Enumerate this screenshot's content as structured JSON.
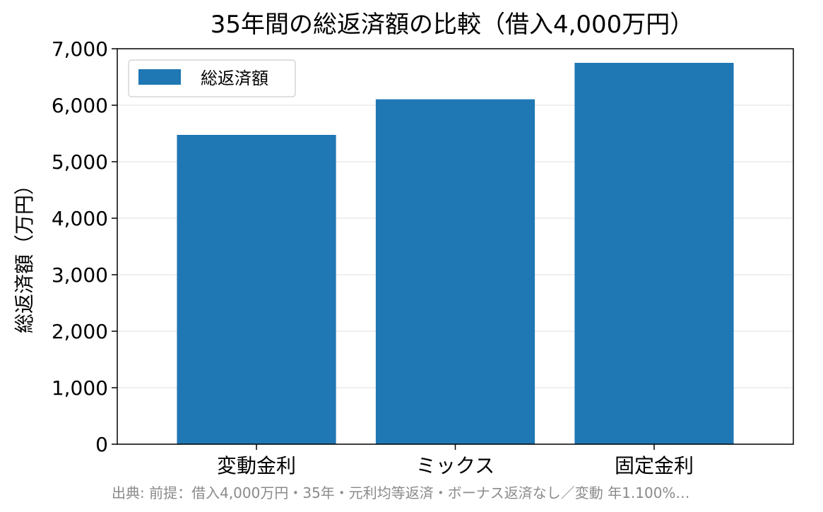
{
  "chart_data": {
    "type": "bar",
    "title": "35年間の総返済額の比較（借入4,000万円）",
    "xlabel": "",
    "ylabel": "総返済額（万円）",
    "categories": [
      "変動金利",
      "ミックス",
      "固定金利"
    ],
    "series": [
      {
        "name": "総返済額",
        "values": [
          5475,
          6105,
          6750
        ]
      }
    ],
    "ylim": [
      0,
      7000
    ],
    "yticks": [
      0,
      1000,
      2000,
      3000,
      4000,
      5000,
      6000,
      7000
    ],
    "ytick_labels": [
      "0",
      "1,000",
      "2,000",
      "3,000",
      "4,000",
      "5,000",
      "6,000",
      "7,000"
    ],
    "grid": "horizontal",
    "legend_position": "top-left",
    "bar_color": "#1f77b4",
    "source_note": "出典: 前提：借入4,000万円・35年・元利均等返済・ボーナス返済なし／変動 年1.100%…"
  }
}
